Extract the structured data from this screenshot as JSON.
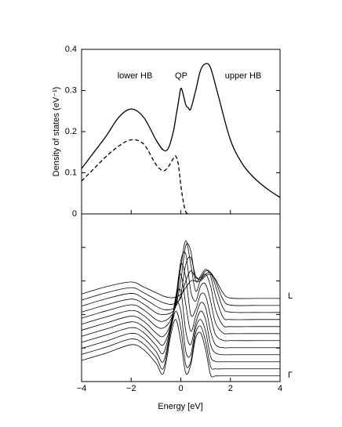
{
  "chart_data": [
    {
      "type": "line",
      "ylabel": "Density of states (eV⁻¹)",
      "annotations": [
        "lower HB",
        "QP",
        "upper HB"
      ],
      "xlim": [
        -4,
        4
      ],
      "ylim": [
        0,
        0.4
      ],
      "yticks": [
        0,
        0.1,
        0.2,
        0.3,
        0.4
      ],
      "x": [
        -4,
        -3.5,
        -3,
        -2.5,
        -2,
        -1.5,
        -1,
        -0.7,
        -0.5,
        -0.3,
        -0.2,
        -0.1,
        0,
        0.1,
        0.2,
        0.3,
        0.4,
        0.6,
        0.8,
        1,
        1.2,
        1.5,
        2,
        2.5,
        3,
        3.5,
        4
      ],
      "series": [
        {
          "color": "#000000",
          "dash": false,
          "values": [
            0.11,
            0.15,
            0.19,
            0.235,
            0.255,
            0.235,
            0.18,
            0.155,
            0.16,
            0.2,
            0.235,
            0.27,
            0.305,
            0.29,
            0.265,
            0.258,
            0.255,
            0.3,
            0.35,
            0.365,
            0.355,
            0.29,
            0.18,
            0.12,
            0.085,
            0.06,
            0.04
          ]
        },
        {
          "color": "#000000",
          "dash": true,
          "values": [
            0.08,
            0.11,
            0.14,
            0.165,
            0.18,
            0.17,
            0.12,
            0.105,
            0.115,
            0.135,
            0.14,
            0.12,
            0.07,
            0.03,
            0.005,
            0,
            null,
            null,
            null,
            null,
            null,
            null,
            null,
            null,
            null,
            null,
            null
          ]
        }
      ]
    },
    {
      "type": "waterfall",
      "xlabel": "Energy  [eV]",
      "side_labels": [
        "L",
        "Γ"
      ],
      "xlim": [
        -4,
        4
      ],
      "xticks": [
        {
          "value": -4,
          "label": "−4"
        },
        {
          "value": -2,
          "label": "−2"
        },
        0,
        2,
        4
      ],
      "ylim": [
        0,
        5
      ],
      "yticks": [
        1,
        2,
        3,
        4
      ],
      "ytick_labels": false,
      "color": "#000000",
      "x": [
        -4,
        -3,
        -2,
        -1.5,
        -1,
        -0.7,
        -0.4,
        -0.2,
        0,
        0.2,
        0.4,
        0.6,
        0.8,
        1,
        1.2,
        1.4,
        1.7,
        2,
        3,
        4
      ],
      "series": [
        {
          "values": [
            0.63,
            0.85,
            1.1,
            0.95,
            0.55,
            0.25,
            1.4,
            1.85,
            1.2,
            0.25,
            0.5,
            1.3,
            1.45,
            0.95,
            0.2,
            0.17,
            0.17,
            0.17,
            0.17,
            0.17
          ]
        },
        {
          "values": [
            0.81,
            1.03,
            1.27,
            1.12,
            0.72,
            0.4,
            1.55,
            2.1,
            1.6,
            0.5,
            0.6,
            1.45,
            1.65,
            1.2,
            0.45,
            0.38,
            0.38,
            0.38,
            0.38,
            0.38
          ]
        },
        {
          "values": [
            0.99,
            1.21,
            1.44,
            1.29,
            0.9,
            0.6,
            1.6,
            2.35,
            2.1,
            0.9,
            0.8,
            1.6,
            1.85,
            1.5,
            0.75,
            0.6,
            0.59,
            0.59,
            0.59,
            0.59
          ]
        },
        {
          "values": [
            1.17,
            1.39,
            1.61,
            1.46,
            1.08,
            0.85,
            1.65,
            2.5,
            2.7,
            1.5,
            1.1,
            1.75,
            2.1,
            1.85,
            1.1,
            0.85,
            0.8,
            0.8,
            0.8,
            0.8
          ]
        },
        {
          "values": [
            1.35,
            1.57,
            1.78,
            1.63,
            1.26,
            1.1,
            1.7,
            2.55,
            3.2,
            2.3,
            1.5,
            1.95,
            2.35,
            2.2,
            1.5,
            1.1,
            1.01,
            1.01,
            1.01,
            1.01
          ]
        },
        {
          "values": [
            1.53,
            1.75,
            1.95,
            1.8,
            1.45,
            1.35,
            1.75,
            2.5,
            3.5,
            3.1,
            2.0,
            2.15,
            2.6,
            2.55,
            1.95,
            1.4,
            1.23,
            1.22,
            1.22,
            1.22
          ]
        },
        {
          "values": [
            1.71,
            1.93,
            2.12,
            1.97,
            1.65,
            1.6,
            1.85,
            2.4,
            3.6,
            3.8,
            2.7,
            2.4,
            2.85,
            2.9,
            2.4,
            1.75,
            1.45,
            1.43,
            1.43,
            1.43
          ]
        },
        {
          "values": [
            1.89,
            2.11,
            2.29,
            2.14,
            1.85,
            1.8,
            1.95,
            2.3,
            3.4,
            4.2,
            3.5,
            2.7,
            3.05,
            3.2,
            2.85,
            2.15,
            1.68,
            1.64,
            1.64,
            1.64
          ]
        },
        {
          "values": [
            2.07,
            2.29,
            2.46,
            2.31,
            2.05,
            2.0,
            2.05,
            2.25,
            3.0,
            4.05,
            3.9,
            3.0,
            3.15,
            3.35,
            3.15,
            2.55,
            1.92,
            1.85,
            1.85,
            1.85
          ]
        },
        {
          "values": [
            2.25,
            2.47,
            2.63,
            2.48,
            2.25,
            2.15,
            2.15,
            2.25,
            2.6,
            3.5,
            3.7,
            3.15,
            3.1,
            3.3,
            3.25,
            2.85,
            2.2,
            2.07,
            2.06,
            2.06
          ]
        },
        {
          "values": [
            2.43,
            2.65,
            2.8,
            2.65,
            2.45,
            2.35,
            2.3,
            2.35,
            2.5,
            3.0,
            3.3,
            3.1,
            3.05,
            3.2,
            3.25,
            3.0,
            2.45,
            2.28,
            2.27,
            2.27
          ]
        },
        {
          "values": [
            2.61,
            2.83,
            2.97,
            2.82,
            2.65,
            2.55,
            2.5,
            2.52,
            2.6,
            2.8,
            3.0,
            3.0,
            3.0,
            3.15,
            3.2,
            3.05,
            2.65,
            2.49,
            2.48,
            2.48
          ]
        }
      ]
    }
  ]
}
